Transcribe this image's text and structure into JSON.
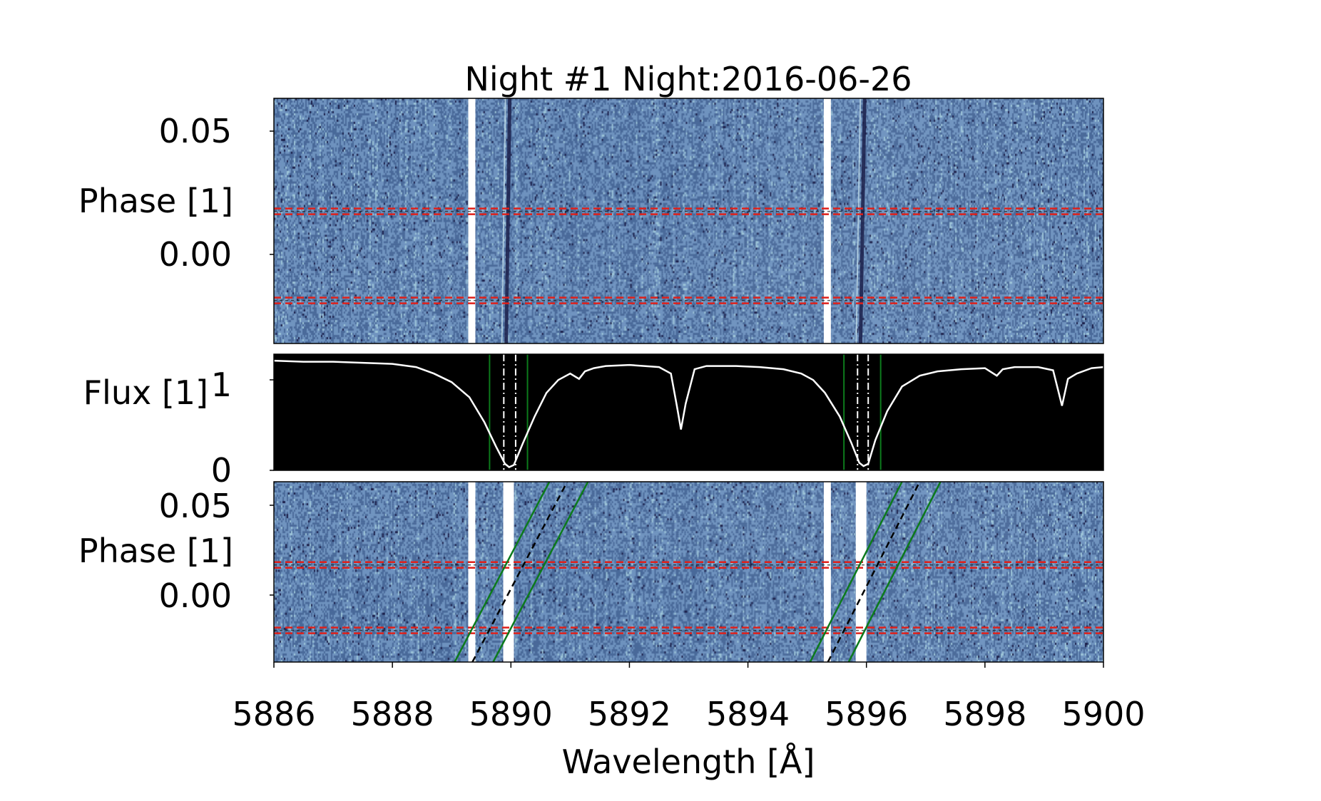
{
  "chart_data": [
    {
      "type": "heatmap",
      "panel": "top",
      "title": "Night #1 Night:2016-06-26",
      "ylabel": "Phase [1]",
      "xlim": [
        5886,
        5900
      ],
      "ylim": [
        -0.035,
        0.063
      ],
      "yticks": [
        0.05,
        0.0
      ],
      "ytick_labels": [
        "0.05",
        "0.00"
      ],
      "colormap": [
        "#1b1f4a",
        "#4a6a9a",
        "#6f93bf",
        "#9cc4d8"
      ],
      "masked_columns": [
        [
          5889.28,
          5889.4
        ],
        [
          5895.28,
          5895.4
        ]
      ],
      "stellar_line_tracks": [
        {
          "x": [
            5889.92,
            5889.98
          ]
        },
        {
          "x": [
            5895.9,
            5895.97
          ]
        }
      ],
      "contact_phases": [
        0.0178,
        -0.0178
      ],
      "contact_line_color": "#e0201a"
    },
    {
      "type": "line",
      "panel": "middle",
      "ylabel": "Flux [1]",
      "xlim": [
        5886,
        5900
      ],
      "ylim": [
        0,
        1.08
      ],
      "yticks": [
        1,
        0
      ],
      "ytick_labels": [
        "1",
        "0"
      ],
      "background": "#000000",
      "line_color": "#ffffff",
      "series": [
        {
          "x": [
            5886.0,
            5886.5,
            5887.0,
            5887.5,
            5888.0,
            5888.4,
            5888.7,
            5889.0,
            5889.3,
            5889.55,
            5889.75,
            5889.9,
            5889.97,
            5890.05,
            5890.2,
            5890.4,
            5890.6,
            5890.8,
            5891.0,
            5891.15,
            5891.25,
            5891.4,
            5891.6,
            5892.0,
            5892.5,
            5892.7,
            5892.8,
            5892.87,
            5892.95,
            5893.1,
            5893.3,
            5893.8,
            5894.2,
            5894.6,
            5894.9,
            5895.1,
            5895.3,
            5895.55,
            5895.75,
            5895.88,
            5895.95,
            5896.03,
            5896.15,
            5896.35,
            5896.6,
            5896.9,
            5897.2,
            5897.6,
            5898.0,
            5898.2,
            5898.3,
            5898.5,
            5898.9,
            5899.15,
            5899.3,
            5899.4,
            5899.55,
            5899.8,
            5900.0
          ],
          "y": [
            1.02,
            1.01,
            1.01,
            1.0,
            0.99,
            0.96,
            0.9,
            0.82,
            0.68,
            0.45,
            0.22,
            0.06,
            0.03,
            0.05,
            0.25,
            0.5,
            0.72,
            0.84,
            0.9,
            0.85,
            0.92,
            0.95,
            0.97,
            0.98,
            0.96,
            0.9,
            0.6,
            0.38,
            0.62,
            0.94,
            0.97,
            0.97,
            0.96,
            0.94,
            0.9,
            0.84,
            0.72,
            0.5,
            0.25,
            0.07,
            0.04,
            0.06,
            0.28,
            0.55,
            0.78,
            0.88,
            0.92,
            0.94,
            0.95,
            0.88,
            0.94,
            0.96,
            0.96,
            0.93,
            0.6,
            0.85,
            0.9,
            0.95,
            0.96
          ]
        }
      ],
      "vlines": [
        {
          "x": 5889.64,
          "color": "#0c7a1c",
          "style": "solid"
        },
        {
          "x": 5889.88,
          "color": "#ffffff",
          "style": "dashdot"
        },
        {
          "x": 5890.08,
          "color": "#ffffff",
          "style": "dashdot"
        },
        {
          "x": 5890.28,
          "color": "#0c7a1c",
          "style": "solid"
        },
        {
          "x": 5895.62,
          "color": "#0c7a1c",
          "style": "solid"
        },
        {
          "x": 5895.85,
          "color": "#ffffff",
          "style": "dashdot"
        },
        {
          "x": 5896.03,
          "color": "#ffffff",
          "style": "dashdot"
        },
        {
          "x": 5896.24,
          "color": "#0c7a1c",
          "style": "solid"
        }
      ]
    },
    {
      "type": "heatmap",
      "panel": "bottom",
      "ylabel": "Phase [1]",
      "xlabel": "Wavelength [Å]",
      "xlim": [
        5886,
        5900
      ],
      "ylim": [
        -0.035,
        0.063
      ],
      "yticks": [
        0.05,
        0.0
      ],
      "ytick_labels": [
        "0.05",
        "0.00"
      ],
      "xticks": [
        5886,
        5888,
        5890,
        5892,
        5894,
        5896,
        5898,
        5900
      ],
      "xtick_labels": [
        "5886",
        "5888",
        "5890",
        "5892",
        "5894",
        "5896",
        "5898",
        "5900"
      ],
      "masked_columns": [
        [
          5889.28,
          5889.4
        ],
        [
          5889.87,
          5890.05
        ],
        [
          5895.28,
          5895.4
        ],
        [
          5895.82,
          5896.0
        ]
      ],
      "contact_phases": [
        0.0178,
        -0.0178
      ],
      "contact_line_color": "#e0201a",
      "planet_tracks": [
        {
          "x0": 5889.05,
          "x1": 5890.65,
          "color": "#0c7a1c",
          "style": "solid"
        },
        {
          "x0": 5889.35,
          "x1": 5890.95,
          "color": "#000000",
          "style": "dashed"
        },
        {
          "x0": 5889.7,
          "x1": 5891.3,
          "color": "#0c7a1c",
          "style": "solid"
        },
        {
          "x0": 5895.05,
          "x1": 5896.6,
          "color": "#0c7a1c",
          "style": "solid"
        },
        {
          "x0": 5895.35,
          "x1": 5896.9,
          "color": "#000000",
          "style": "dashed"
        },
        {
          "x0": 5895.7,
          "x1": 5897.25,
          "color": "#0c7a1c",
          "style": "solid"
        }
      ]
    }
  ]
}
